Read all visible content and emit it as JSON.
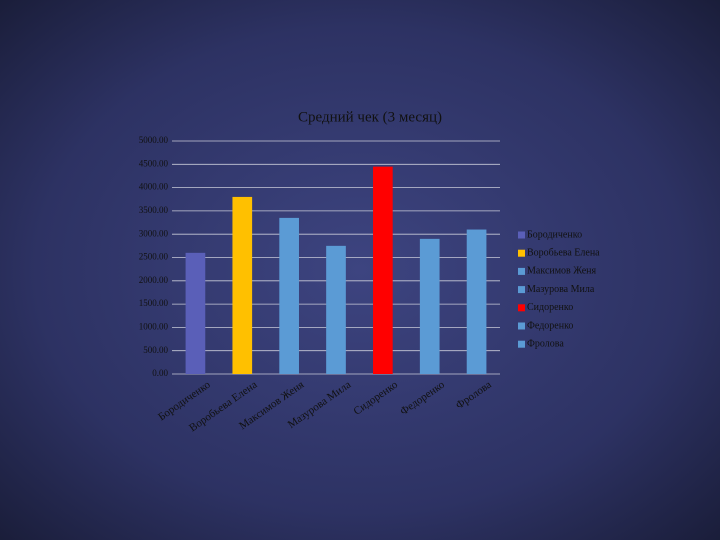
{
  "chart_data": {
    "type": "bar",
    "title": "Средний чек (3 месяц)",
    "categories": [
      "Бородиченко",
      "Воробьева Елена",
      "Максимов Женя",
      "Мазурова Мила",
      "Сидоренко",
      "Федоренко",
      "Фролова"
    ],
    "values": [
      2600,
      3800,
      3350,
      2750,
      4450,
      2900,
      3100
    ],
    "colors": [
      "#5a5fb8",
      "#ffc000",
      "#5b9bd5",
      "#5b9bd5",
      "#ff0000",
      "#5b9bd5",
      "#5b9bd5"
    ],
    "ylim": [
      0,
      5000
    ],
    "yticks": [
      {
        "value": 0,
        "label": "0.00"
      },
      {
        "value": 500,
        "label": "500.00"
      },
      {
        "value": 1000,
        "label": "1000.00"
      },
      {
        "value": 1500,
        "label": "1500.00"
      },
      {
        "value": 2000,
        "label": "2000.00"
      },
      {
        "value": 2500,
        "label": "2500.00"
      },
      {
        "value": 3000,
        "label": "3000.00"
      },
      {
        "value": 3500,
        "label": "3500.00"
      },
      {
        "value": 4000,
        "label": "4000.00"
      },
      {
        "value": 4500,
        "label": "4500.00"
      },
      {
        "value": 5000,
        "label": "5000.00"
      }
    ],
    "grid": true,
    "legend": "right"
  }
}
